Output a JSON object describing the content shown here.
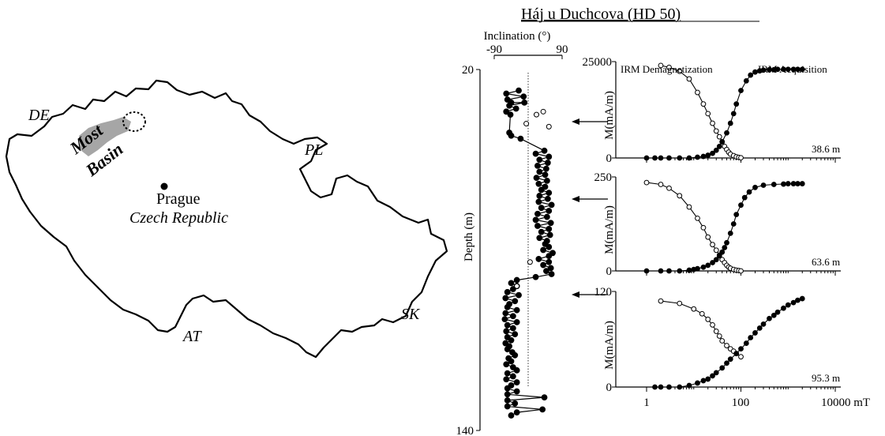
{
  "map": {
    "labels": {
      "de": "DE",
      "pl": "PL",
      "sk": "SK",
      "at": "AT",
      "most": "Most",
      "basin": "Basin",
      "prague": "Prague",
      "country": "Czech Republic"
    },
    "colors": {
      "outline": "#000000",
      "basin_fill": "#a6a6a6"
    }
  },
  "figure": {
    "title": "Háj u Duchcova (HD 50)"
  },
  "chart_data": [
    {
      "type": "scatter",
      "id": "inclination-log",
      "xlabel": "Inclination (°)",
      "ylabel": "Depth (m)",
      "xlim": [
        -90,
        90
      ],
      "ylim": [
        20,
        140
      ],
      "x_ticks": [
        "-90",
        "90"
      ],
      "y_ticks": [
        "20",
        "140"
      ],
      "series": [
        {
          "kind": "connected-filled",
          "points": [
            [
              -25,
              27
            ],
            [
              -58,
              28
            ],
            [
              -12,
              29
            ],
            [
              -55,
              30
            ],
            [
              -45,
              31
            ],
            [
              -10,
              31
            ],
            [
              -50,
              32
            ],
            [
              -32,
              33
            ],
            [
              -58,
              34
            ],
            [
              -47,
              35
            ],
            [
              -50,
              41
            ],
            [
              -45,
              42
            ],
            [
              -20,
              43
            ],
            [
              43,
              47
            ],
            [
              20,
              48
            ],
            [
              55,
              49
            ],
            [
              30,
              50
            ],
            [
              52,
              51
            ],
            [
              25,
              52
            ],
            [
              48,
              53
            ],
            [
              30,
              54
            ],
            [
              45,
              55
            ],
            [
              22,
              56
            ],
            [
              50,
              57
            ],
            [
              28,
              58
            ],
            [
              45,
              59
            ],
            [
              35,
              60
            ],
            [
              55,
              61
            ],
            [
              30,
              62
            ],
            [
              52,
              63
            ],
            [
              28,
              64
            ],
            [
              62,
              65
            ],
            [
              35,
              66
            ],
            [
              55,
              67
            ],
            [
              25,
              68
            ],
            [
              50,
              69
            ],
            [
              20,
              70
            ],
            [
              60,
              71
            ],
            [
              25,
              72
            ],
            [
              55,
              73
            ],
            [
              35,
              74
            ],
            [
              58,
              75
            ],
            [
              30,
              76
            ],
            [
              50,
              77
            ],
            [
              45,
              78
            ],
            [
              55,
              79
            ],
            [
              40,
              80
            ],
            [
              65,
              81
            ],
            [
              55,
              82
            ],
            [
              28,
              83
            ],
            [
              55,
              84
            ],
            [
              40,
              85
            ],
            [
              60,
              86
            ],
            [
              48,
              87
            ],
            [
              62,
              88
            ],
            [
              20,
              89
            ],
            [
              -30,
              90
            ],
            [
              -45,
              91
            ],
            [
              -30,
              92
            ],
            [
              -40,
              93
            ],
            [
              -55,
              94
            ],
            [
              -25,
              95
            ],
            [
              -60,
              96
            ],
            [
              -35,
              97
            ],
            [
              -50,
              98
            ],
            [
              -55,
              99
            ],
            [
              -30,
              100
            ],
            [
              -60,
              101
            ],
            [
              -40,
              102
            ],
            [
              -62,
              103
            ],
            [
              -30,
              104
            ],
            [
              -55,
              105
            ],
            [
              -40,
              106
            ],
            [
              -58,
              107
            ],
            [
              -35,
              108
            ],
            [
              -55,
              109
            ],
            [
              -45,
              110
            ],
            [
              -60,
              111
            ],
            [
              -50,
              112
            ],
            [
              -55,
              113
            ],
            [
              -42,
              114
            ],
            [
              -35,
              115
            ],
            [
              -52,
              116
            ],
            [
              -45,
              117
            ],
            [
              -58,
              118
            ],
            [
              -40,
              119
            ],
            [
              -30,
              120
            ],
            [
              -55,
              121
            ],
            [
              -40,
              122
            ],
            [
              -58,
              123
            ],
            [
              -30,
              124
            ],
            [
              -45,
              125
            ],
            [
              -55,
              126
            ],
            [
              -30,
              127
            ],
            [
              -55,
              128
            ],
            [
              43,
              129
            ],
            [
              -55,
              130
            ],
            [
              -35,
              131
            ],
            [
              -55,
              132
            ],
            [
              38,
              133
            ],
            [
              -30,
              134
            ],
            [
              -45,
              135
            ]
          ]
        },
        {
          "kind": "open",
          "points": [
            [
              40,
              34
            ],
            [
              22,
              35
            ],
            [
              -5,
              38
            ],
            [
              55,
              39
            ],
            [
              5,
              84
            ],
            [
              -30,
              92
            ]
          ]
        }
      ],
      "reference_line_x": 0
    },
    {
      "type": "line",
      "id": "irm-38-6",
      "ylabel": "M(mA/m)",
      "ylim": [
        0,
        25000
      ],
      "y_ticks": [
        "0",
        "25000"
      ],
      "xscale": "log",
      "xlim": [
        1,
        10000
      ],
      "annotation": "38.6 m",
      "legend_labels": [
        "IRM Demagnetization",
        "IRM Acquisition"
      ],
      "series": [
        {
          "name": "IRM Demagnetization",
          "marker": "open",
          "x": [
            2,
            3,
            5,
            8,
            12,
            16,
            20,
            25,
            30,
            35,
            40,
            45,
            50,
            55,
            60,
            70,
            80,
            90,
            100
          ],
          "y": [
            24000,
            23500,
            22500,
            20500,
            17000,
            14000,
            11500,
            9000,
            7000,
            5500,
            4200,
            3000,
            2200,
            1500,
            1000,
            600,
            300,
            150,
            50
          ]
        },
        {
          "name": "IRM Acquisition",
          "marker": "filled",
          "x": [
            1,
            1.5,
            2,
            3,
            5,
            8,
            12,
            16,
            20,
            25,
            30,
            35,
            40,
            50,
            60,
            70,
            80,
            100,
            130,
            160,
            200,
            250,
            300,
            400,
            500,
            600,
            800,
            1000,
            1300,
            1600,
            2000
          ],
          "y": [
            0,
            0,
            0,
            0,
            0,
            0,
            200,
            400,
            700,
            1200,
            2000,
            3000,
            4200,
            6500,
            9000,
            11500,
            14000,
            17500,
            20000,
            21500,
            22300,
            22600,
            22800,
            22900,
            22900,
            23000,
            23000,
            23000,
            23000,
            23000,
            23000
          ]
        }
      ]
    },
    {
      "type": "line",
      "id": "irm-63-6",
      "ylabel": "M(mA/m)",
      "ylim": [
        0,
        250
      ],
      "y_ticks": [
        "0",
        "250"
      ],
      "xscale": "log",
      "xlim": [
        1,
        10000
      ],
      "annotation": "63.6 m",
      "series": [
        {
          "name": "",
          "marker": "open",
          "x": [
            1,
            2,
            3,
            5,
            8,
            12,
            16,
            20,
            25,
            30,
            35,
            40,
            45,
            50,
            55,
            60,
            70,
            80,
            90,
            100
          ],
          "y": [
            235,
            230,
            220,
            200,
            170,
            140,
            115,
            90,
            70,
            55,
            42,
            30,
            22,
            15,
            10,
            7,
            4,
            2,
            1,
            0
          ]
        },
        {
          "name": "",
          "marker": "filled",
          "x": [
            1,
            2,
            3,
            5,
            8,
            10,
            12,
            16,
            20,
            25,
            30,
            35,
            40,
            45,
            50,
            60,
            70,
            80,
            100,
            120,
            150,
            200,
            300,
            500,
            800,
            1000,
            1300,
            1600,
            2000
          ],
          "y": [
            0,
            0,
            0,
            0,
            2,
            4,
            6,
            10,
            15,
            22,
            30,
            40,
            50,
            62,
            75,
            100,
            125,
            150,
            175,
            195,
            210,
            222,
            228,
            230,
            231,
            232,
            232,
            232,
            232
          ]
        }
      ]
    },
    {
      "type": "line",
      "id": "irm-95-3",
      "ylabel": "M(mA/m)",
      "ylim": [
        0,
        120
      ],
      "y_ticks": [
        "0",
        "120"
      ],
      "xscale": "log",
      "xlim": [
        1,
        10000
      ],
      "x_ticks": [
        "1",
        "100",
        "10000 mT"
      ],
      "annotation": "95.3 m",
      "series": [
        {
          "name": "",
          "marker": "open",
          "x": [
            2,
            5,
            10,
            15,
            20,
            25,
            30,
            35,
            40,
            50,
            60,
            70,
            80,
            100
          ],
          "y": [
            108,
            105,
            98,
            92,
            85,
            78,
            70,
            64,
            58,
            52,
            48,
            45,
            42,
            38
          ]
        },
        {
          "name": "",
          "marker": "filled",
          "x": [
            1.5,
            2,
            3,
            5,
            8,
            12,
            16,
            20,
            25,
            30,
            40,
            50,
            60,
            80,
            100,
            130,
            160,
            200,
            250,
            300,
            400,
            500,
            600,
            800,
            1000,
            1300,
            1600,
            2000
          ],
          "y": [
            0,
            0,
            0,
            0,
            2,
            5,
            8,
            10,
            14,
            18,
            24,
            30,
            35,
            42,
            48,
            55,
            62,
            68,
            74,
            79,
            86,
            90,
            94,
            99,
            103,
            106,
            109,
            111
          ]
        }
      ]
    }
  ]
}
